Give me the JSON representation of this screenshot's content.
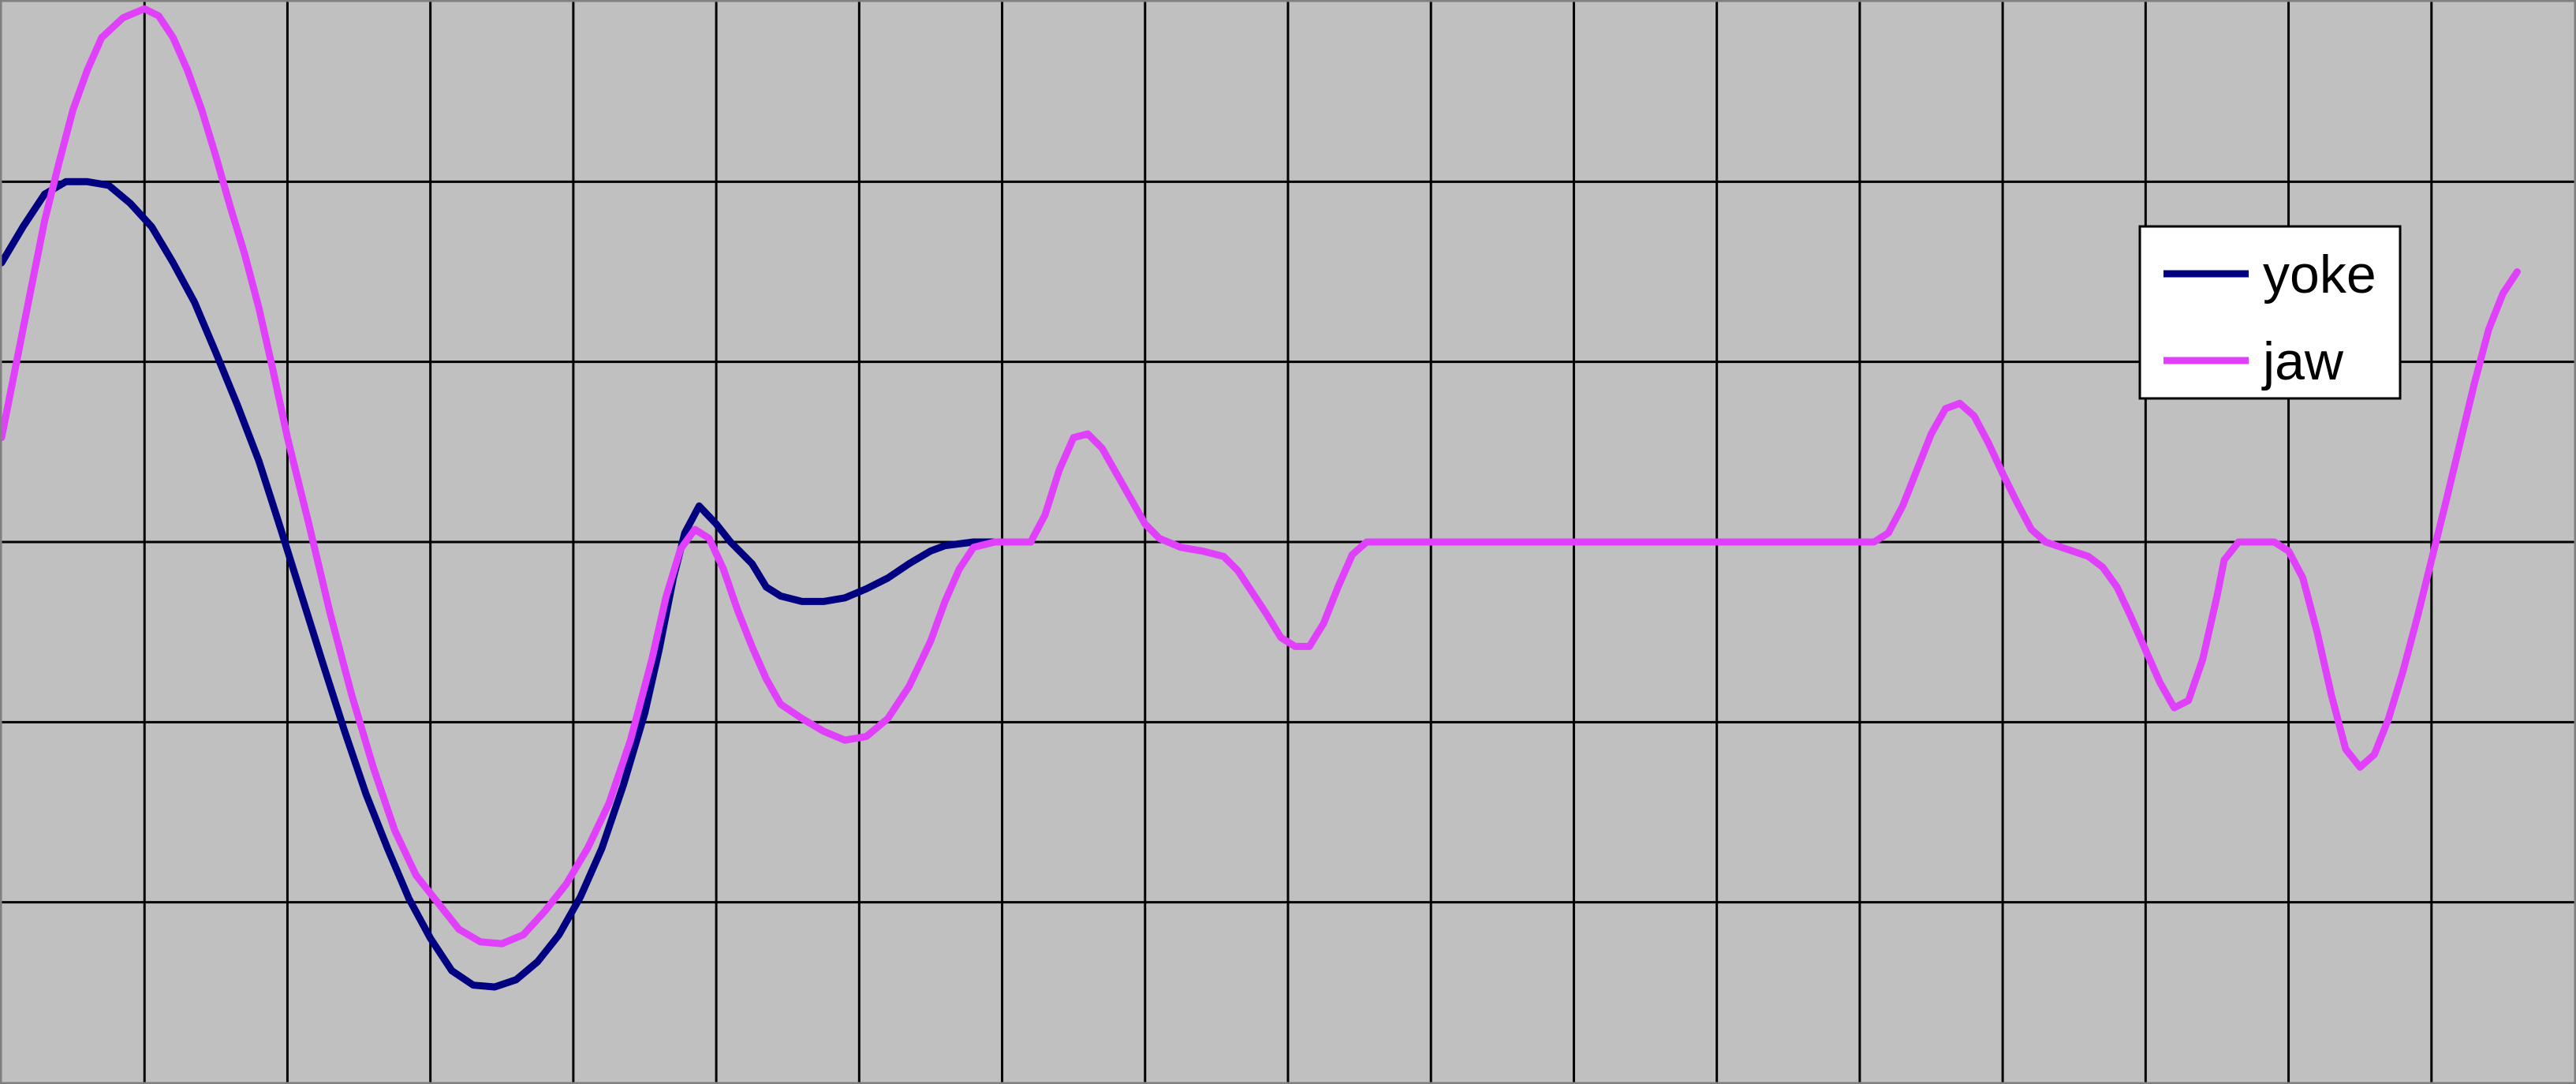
{
  "chart_data": {
    "type": "line",
    "title": "",
    "xlabel": "",
    "ylabel": "",
    "grid": true,
    "legend_position": "right",
    "xlim": [
      0,
      18
    ],
    "ylim": [
      -3,
      3
    ],
    "x_gridlines": 18,
    "y_gridlines": 6,
    "colors": {
      "plot_bg": "#c0c0c0",
      "grid": "#000000",
      "axis": "#808080"
    },
    "series": [
      {
        "name": "yoke",
        "color": "#000080",
        "points": [
          [
            0.0,
            1.55
          ],
          [
            0.15,
            1.75
          ],
          [
            0.3,
            1.93
          ],
          [
            0.45,
            2.0
          ],
          [
            0.6,
            2.0
          ],
          [
            0.75,
            1.98
          ],
          [
            0.9,
            1.88
          ],
          [
            1.05,
            1.75
          ],
          [
            1.2,
            1.55
          ],
          [
            1.35,
            1.33
          ],
          [
            1.5,
            1.05
          ],
          [
            1.65,
            0.76
          ],
          [
            1.8,
            0.45
          ],
          [
            1.95,
            0.08
          ],
          [
            2.1,
            -0.3
          ],
          [
            2.25,
            -0.68
          ],
          [
            2.4,
            -1.05
          ],
          [
            2.55,
            -1.4
          ],
          [
            2.7,
            -1.7
          ],
          [
            2.85,
            -1.98
          ],
          [
            3.0,
            -2.2
          ],
          [
            3.15,
            -2.38
          ],
          [
            3.3,
            -2.46
          ],
          [
            3.45,
            -2.47
          ],
          [
            3.6,
            -2.43
          ],
          [
            3.75,
            -2.33
          ],
          [
            3.9,
            -2.18
          ],
          [
            4.05,
            -1.97
          ],
          [
            4.2,
            -1.7
          ],
          [
            4.35,
            -1.35
          ],
          [
            4.5,
            -0.95
          ],
          [
            4.6,
            -0.6
          ],
          [
            4.7,
            -0.2
          ],
          [
            4.78,
            0.05
          ],
          [
            4.88,
            0.2
          ],
          [
            5.0,
            0.1
          ],
          [
            5.1,
            0.0
          ],
          [
            5.25,
            -0.12
          ],
          [
            5.35,
            -0.25
          ],
          [
            5.45,
            -0.3
          ],
          [
            5.6,
            -0.33
          ],
          [
            5.75,
            -0.33
          ],
          [
            5.9,
            -0.31
          ],
          [
            6.05,
            -0.26
          ],
          [
            6.2,
            -0.2
          ],
          [
            6.35,
            -0.12
          ],
          [
            6.5,
            -0.05
          ],
          [
            6.6,
            -0.02
          ],
          [
            6.8,
            0.0
          ],
          [
            7.1,
            0.0
          ],
          [
            7.2,
            0.0
          ]
        ]
      },
      {
        "name": "jaw",
        "color": "#e040fb",
        "points": [
          [
            0.0,
            0.58
          ],
          [
            0.1,
            0.98
          ],
          [
            0.2,
            1.38
          ],
          [
            0.3,
            1.78
          ],
          [
            0.4,
            2.1
          ],
          [
            0.5,
            2.4
          ],
          [
            0.6,
            2.62
          ],
          [
            0.7,
            2.8
          ],
          [
            0.85,
            2.91
          ],
          [
            1.0,
            2.96
          ],
          [
            1.1,
            2.92
          ],
          [
            1.2,
            2.8
          ],
          [
            1.3,
            2.62
          ],
          [
            1.4,
            2.4
          ],
          [
            1.5,
            2.14
          ],
          [
            1.6,
            1.86
          ],
          [
            1.7,
            1.6
          ],
          [
            1.8,
            1.3
          ],
          [
            1.9,
            0.95
          ],
          [
            2.0,
            0.58
          ],
          [
            2.15,
            0.1
          ],
          [
            2.3,
            -0.4
          ],
          [
            2.45,
            -0.85
          ],
          [
            2.6,
            -1.25
          ],
          [
            2.75,
            -1.6
          ],
          [
            2.9,
            -1.85
          ],
          [
            3.05,
            -2.0
          ],
          [
            3.2,
            -2.15
          ],
          [
            3.35,
            -2.22
          ],
          [
            3.5,
            -2.23
          ],
          [
            3.65,
            -2.18
          ],
          [
            3.8,
            -2.05
          ],
          [
            3.95,
            -1.9
          ],
          [
            4.1,
            -1.7
          ],
          [
            4.25,
            -1.45
          ],
          [
            4.4,
            -1.1
          ],
          [
            4.55,
            -0.65
          ],
          [
            4.65,
            -0.3
          ],
          [
            4.75,
            -0.04
          ],
          [
            4.85,
            0.07
          ],
          [
            4.95,
            0.02
          ],
          [
            5.05,
            -0.15
          ],
          [
            5.15,
            -0.38
          ],
          [
            5.25,
            -0.58
          ],
          [
            5.35,
            -0.76
          ],
          [
            5.45,
            -0.9
          ],
          [
            5.6,
            -0.98
          ],
          [
            5.75,
            -1.05
          ],
          [
            5.9,
            -1.1
          ],
          [
            6.05,
            -1.08
          ],
          [
            6.2,
            -0.98
          ],
          [
            6.35,
            -0.8
          ],
          [
            6.5,
            -0.55
          ],
          [
            6.6,
            -0.33
          ],
          [
            6.7,
            -0.15
          ],
          [
            6.8,
            -0.03
          ],
          [
            6.95,
            0.0
          ],
          [
            7.1,
            0.0
          ],
          [
            7.2,
            0.0
          ],
          [
            7.3,
            0.15
          ],
          [
            7.4,
            0.4
          ],
          [
            7.5,
            0.58
          ],
          [
            7.6,
            0.6
          ],
          [
            7.7,
            0.52
          ],
          [
            7.8,
            0.38
          ],
          [
            7.9,
            0.24
          ],
          [
            8.0,
            0.1
          ],
          [
            8.1,
            0.02
          ],
          [
            8.25,
            -0.03
          ],
          [
            8.4,
            -0.05
          ],
          [
            8.55,
            -0.08
          ],
          [
            8.65,
            -0.16
          ],
          [
            8.75,
            -0.28
          ],
          [
            8.85,
            -0.4
          ],
          [
            8.95,
            -0.53
          ],
          [
            9.05,
            -0.58
          ],
          [
            9.15,
            -0.58
          ],
          [
            9.25,
            -0.45
          ],
          [
            9.35,
            -0.25
          ],
          [
            9.45,
            -0.07
          ],
          [
            9.55,
            0.0
          ],
          [
            9.8,
            0.0
          ],
          [
            10.5,
            0.0
          ],
          [
            11.5,
            0.0
          ],
          [
            12.5,
            0.0
          ],
          [
            13.0,
            0.0
          ],
          [
            13.1,
            0.0
          ],
          [
            13.2,
            0.05
          ],
          [
            13.3,
            0.2
          ],
          [
            13.4,
            0.4
          ],
          [
            13.5,
            0.6
          ],
          [
            13.6,
            0.74
          ],
          [
            13.7,
            0.77
          ],
          [
            13.8,
            0.7
          ],
          [
            13.9,
            0.55
          ],
          [
            14.0,
            0.38
          ],
          [
            14.1,
            0.22
          ],
          [
            14.2,
            0.07
          ],
          [
            14.3,
            0.0
          ],
          [
            14.45,
            -0.04
          ],
          [
            14.6,
            -0.08
          ],
          [
            14.7,
            -0.14
          ],
          [
            14.8,
            -0.25
          ],
          [
            14.9,
            -0.42
          ],
          [
            15.0,
            -0.6
          ],
          [
            15.1,
            -0.78
          ],
          [
            15.2,
            -0.92
          ],
          [
            15.3,
            -0.88
          ],
          [
            15.4,
            -0.65
          ],
          [
            15.5,
            -0.3
          ],
          [
            15.55,
            -0.1
          ],
          [
            15.65,
            0.0
          ],
          [
            15.8,
            0.0
          ],
          [
            15.9,
            0.0
          ],
          [
            16.0,
            -0.05
          ],
          [
            16.1,
            -0.2
          ],
          [
            16.2,
            -0.5
          ],
          [
            16.3,
            -0.85
          ],
          [
            16.4,
            -1.15
          ],
          [
            16.5,
            -1.25
          ],
          [
            16.6,
            -1.18
          ],
          [
            16.7,
            -0.98
          ],
          [
            16.8,
            -0.72
          ],
          [
            16.9,
            -0.42
          ],
          [
            17.0,
            -0.1
          ],
          [
            17.1,
            0.22
          ],
          [
            17.2,
            0.55
          ],
          [
            17.3,
            0.88
          ],
          [
            17.4,
            1.18
          ],
          [
            17.5,
            1.38
          ],
          [
            17.6,
            1.5
          ]
        ]
      }
    ],
    "legend": [
      "yoke",
      "jaw"
    ]
  }
}
